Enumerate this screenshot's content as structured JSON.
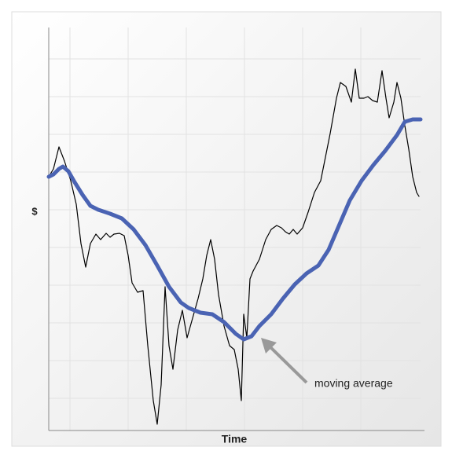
{
  "chart_data": {
    "type": "line",
    "xlabel": "Time",
    "ylabel": "$",
    "annotation": "moving average",
    "xlim": [
      0,
      473
    ],
    "ylim": [
      0,
      513
    ],
    "grid": true,
    "series": [
      {
        "color": "#000000",
        "x": [
          0,
          6,
          13,
          20,
          28,
          35,
          41,
          47,
          53,
          60,
          66,
          73,
          78,
          83,
          90,
          96,
          101,
          106,
          113,
          120,
          126,
          133,
          138,
          143,
          148,
          153,
          158,
          164,
          170,
          176,
          183,
          190,
          196,
          201,
          206,
          211,
          216,
          223,
          230,
          236,
          241,
          245,
          248,
          252,
          256,
          260,
          268,
          276,
          283,
          290,
          296,
          301,
          306,
          311,
          316,
          323,
          330,
          338,
          346,
          351,
          358,
          366,
          371,
          378,
          385,
          390,
          395,
          401,
          406,
          412,
          418,
          424,
          429,
          433,
          439,
          443,
          448,
          453,
          458,
          463,
          468,
          471
        ],
        "values": [
          323,
          333,
          361,
          343,
          318,
          288,
          238,
          208,
          238,
          250,
          243,
          251,
          246,
          250,
          251,
          248,
          223,
          188,
          176,
          178,
          108,
          38,
          8,
          58,
          183,
          108,
          78,
          128,
          153,
          118,
          143,
          168,
          193,
          223,
          243,
          218,
          173,
          133,
          108,
          103,
          78,
          38,
          148,
          118,
          193,
          203,
          218,
          243,
          256,
          261,
          258,
          253,
          250,
          256,
          250,
          258,
          278,
          303,
          318,
          343,
          378,
          423,
          443,
          438,
          418,
          460,
          423,
          423,
          425,
          420,
          418,
          458,
          423,
          398,
          418,
          443,
          423,
          388,
          358,
          323,
          303,
          298
        ]
      },
      {
        "color": "#4a63b3",
        "x": [
          0,
          6,
          13,
          18,
          25,
          33,
          43,
          53,
          63,
          78,
          93,
          108,
          123,
          138,
          153,
          168,
          178,
          193,
          208,
          223,
          238,
          248,
          258,
          268,
          283,
          298,
          313,
          328,
          343,
          356,
          368,
          383,
          398,
          413,
          428,
          443,
          453,
          463,
          473
        ],
        "values": [
          323,
          326,
          333,
          336,
          330,
          316,
          300,
          286,
          281,
          276,
          270,
          256,
          236,
          210,
          183,
          163,
          156,
          150,
          148,
          138,
          123,
          116,
          120,
          133,
          148,
          168,
          186,
          200,
          210,
          230,
          258,
          293,
          318,
          338,
          356,
          376,
          393,
          396,
          396
        ]
      }
    ]
  }
}
